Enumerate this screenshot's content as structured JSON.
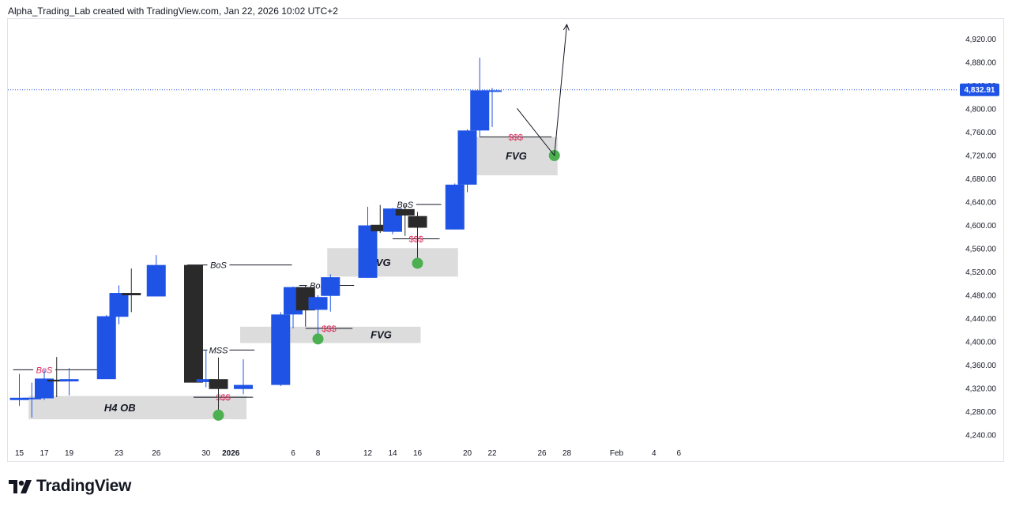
{
  "header": {
    "attribution": "Alpha_Trading_Lab created with TradingView.com, Jan 22, 2026 10:02 UTC+2"
  },
  "logo": {
    "text": "TradingView",
    "icon": "tradingview-logo-icon"
  },
  "colors": {
    "bull": "#1e53e5",
    "bear": "#2a2a2a",
    "price_line": "#1e53e5",
    "zone_fill": "#dcdcdc",
    "liquidity": "#e0285a",
    "marker": "#4caf50",
    "axis_text": "#131722"
  },
  "chart_data": {
    "type": "candlestick",
    "symbol": "",
    "current_price": 4832.91,
    "current_price_label": "4,832.91",
    "y_ticks": [
      4240,
      4280,
      4320,
      4360,
      4400,
      4440,
      4480,
      4520,
      4560,
      4600,
      4640,
      4680,
      4720,
      4760,
      4800,
      4840,
      4880,
      4920
    ],
    "y_tick_labels": [
      "4,240.00",
      "4,280.00",
      "4,320.00",
      "4,360.00",
      "4,400.00",
      "4,440.00",
      "4,480.00",
      "4,520.00",
      "4,560.00",
      "4,600.00",
      "4,640.00",
      "4,680.00",
      "4,720.00",
      "4,760.00",
      "4,800.00",
      "4,840.00",
      "4,880.00",
      "4,920.00"
    ],
    "x_ticks": [
      {
        "date": "2025-12-15",
        "label": "15"
      },
      {
        "date": "2025-12-17",
        "label": "17"
      },
      {
        "date": "2025-12-19",
        "label": "19"
      },
      {
        "date": "2025-12-23",
        "label": "23"
      },
      {
        "date": "2025-12-26",
        "label": "26"
      },
      {
        "date": "2025-12-30",
        "label": "30"
      },
      {
        "date": "2026-01-01",
        "label": "2026"
      },
      {
        "date": "2026-01-06",
        "label": "6"
      },
      {
        "date": "2026-01-08",
        "label": "8"
      },
      {
        "date": "2026-01-12",
        "label": "12"
      },
      {
        "date": "2026-01-14",
        "label": "14"
      },
      {
        "date": "2026-01-16",
        "label": "16"
      },
      {
        "date": "2026-01-20",
        "label": "20"
      },
      {
        "date": "2026-01-22",
        "label": "22"
      },
      {
        "date": "2026-01-26",
        "label": "26"
      },
      {
        "date": "2026-01-28",
        "label": "28"
      },
      {
        "date": "2026-02-01",
        "label": "Feb"
      },
      {
        "date": "2026-02-04",
        "label": "4"
      },
      {
        "date": "2026-02-06",
        "label": "6"
      }
    ],
    "candles": [
      {
        "date": "2025-12-15",
        "o": 4300,
        "h": 4345,
        "l": 4290,
        "c": 4304
      },
      {
        "date": "2025-12-16",
        "o": 4303,
        "h": 4330,
        "l": 4270,
        "c": 4304
      },
      {
        "date": "2025-12-17",
        "o": 4303,
        "h": 4352,
        "l": 4300,
        "c": 4337
      },
      {
        "date": "2025-12-18",
        "o": 4335,
        "h": 4374,
        "l": 4305,
        "c": 4332
      },
      {
        "date": "2025-12-19",
        "o": 4332,
        "h": 4355,
        "l": 4308,
        "c": 4336
      },
      {
        "date": "2025-12-22",
        "o": 4336,
        "h": 4446,
        "l": 4336,
        "c": 4444
      },
      {
        "date": "2025-12-23",
        "o": 4443,
        "h": 4497,
        "l": 4430,
        "c": 4484
      },
      {
        "date": "2025-12-24",
        "o": 4484,
        "h": 4526,
        "l": 4451,
        "c": 4480
      },
      {
        "date": "2025-12-26",
        "o": 4478,
        "h": 4549,
        "l": 4478,
        "c": 4532
      },
      {
        "date": "2025-12-29",
        "o": 4532,
        "h": 4532,
        "l": 4330,
        "c": 4330
      },
      {
        "date": "2025-12-30",
        "o": 4331,
        "h": 4386,
        "l": 4322,
        "c": 4336
      },
      {
        "date": "2025-12-31",
        "o": 4336,
        "h": 4373,
        "l": 4274,
        "c": 4319
      },
      {
        "date": "2026-01-02",
        "o": 4319,
        "h": 4370,
        "l": 4310,
        "c": 4326
      },
      {
        "date": "2026-01-05",
        "o": 4326,
        "h": 4451,
        "l": 4324,
        "c": 4447
      },
      {
        "date": "2026-01-06",
        "o": 4447,
        "h": 4495,
        "l": 4423,
        "c": 4494
      },
      {
        "date": "2026-01-07",
        "o": 4494,
        "h": 4497,
        "l": 4426,
        "c": 4454
      },
      {
        "date": "2026-01-08",
        "o": 4455,
        "h": 4480,
        "l": 4405,
        "c": 4477
      },
      {
        "date": "2026-01-09",
        "o": 4479,
        "h": 4516,
        "l": 4452,
        "c": 4511
      },
      {
        "date": "2026-01-12",
        "o": 4510,
        "h": 4632,
        "l": 4510,
        "c": 4600
      },
      {
        "date": "2026-01-13",
        "o": 4601,
        "h": 4635,
        "l": 4587,
        "c": 4590
      },
      {
        "date": "2026-01-14",
        "o": 4589,
        "h": 4630,
        "l": 4585,
        "c": 4629
      },
      {
        "date": "2026-01-15",
        "o": 4628,
        "h": 4636,
        "l": 4582,
        "c": 4617
      },
      {
        "date": "2026-01-16",
        "o": 4616,
        "h": 4623,
        "l": 4535,
        "c": 4596
      },
      {
        "date": "2026-01-19",
        "o": 4593,
        "h": 4672,
        "l": 4593,
        "c": 4670
      },
      {
        "date": "2026-01-20",
        "o": 4670,
        "h": 4765,
        "l": 4657,
        "c": 4763
      },
      {
        "date": "2026-01-21",
        "o": 4763,
        "h": 4888,
        "l": 4752,
        "c": 4832
      },
      {
        "date": "2026-01-22",
        "o": 4832,
        "h": 4836,
        "l": 4769,
        "c": 4832
      }
    ],
    "zones": [
      {
        "label": "H4 OB",
        "from": "2025-12-16",
        "to": "2026-01-02",
        "top": 4307,
        "bottom": 4267
      },
      {
        "label": "FVG",
        "from": "2026-01-02",
        "to": "2026-01-16",
        "top": 4426,
        "bottom": 4398
      },
      {
        "label": "FVG",
        "from": "2026-01-09",
        "to": "2026-01-19",
        "top": 4561,
        "bottom": 4512
      },
      {
        "label": "FVG",
        "from": "2026-01-20",
        "to": "2026-01-27",
        "top": 4752,
        "bottom": 4686
      }
    ],
    "structure_lines": [
      {
        "label": "BoS",
        "color": "liquidity",
        "from": "2025-12-15",
        "to": "2025-12-20",
        "price": 4352
      },
      {
        "label": "BoS",
        "color": "axis_text",
        "from": "2025-12-29",
        "to": "2026-01-04",
        "price": 4532
      },
      {
        "label": "MSS",
        "color": "axis_text",
        "from": "2025-12-30",
        "to": "2026-01-01",
        "price": 4386
      },
      {
        "label": "BoS",
        "color": "axis_text",
        "from": "2026-01-07",
        "to": "2026-01-09",
        "price": 4497
      },
      {
        "label": "BoS",
        "color": "axis_text",
        "from": "2026-01-15",
        "to": "2026-01-16",
        "price": 4636
      }
    ],
    "liquidity_marks": [
      {
        "label": "$$$",
        "from": "2025-12-29",
        "to": "2026-01-01",
        "price": 4305
      },
      {
        "label": "$$$",
        "from": "2026-01-07",
        "to": "2026-01-09",
        "price": 4423
      },
      {
        "label": "$$$",
        "from": "2026-01-14",
        "to": "2026-01-16",
        "price": 4577
      },
      {
        "label": "$$$",
        "from": "2026-01-21",
        "to": "2026-01-25",
        "price": 4752
      }
    ],
    "markers": [
      {
        "date": "2025-12-31",
        "price": 4274
      },
      {
        "date": "2026-01-08",
        "price": 4405
      },
      {
        "date": "2026-01-16",
        "price": 4535
      },
      {
        "date": "2026-01-27",
        "price": 4720
      }
    ],
    "projection": [
      {
        "date": "2026-01-24",
        "price": 4801
      },
      {
        "date": "2026-01-27",
        "price": 4720
      },
      {
        "date": "2026-01-28",
        "price": 4945
      }
    ]
  }
}
